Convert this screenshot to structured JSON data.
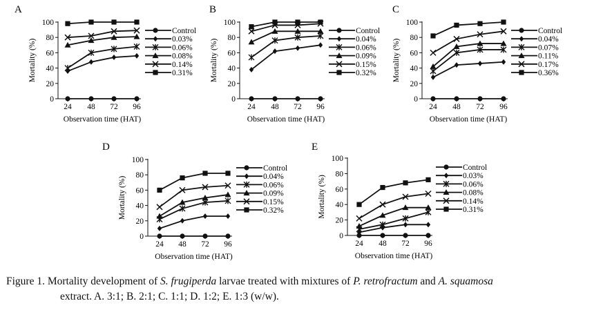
{
  "figure": {
    "caption": {
      "prefix": "Figure 1. Mortality development of ",
      "species1": "S. frugiperda",
      "mid1": " larvae treated with mixtures of ",
      "species2": "P. retrofractum",
      "mid2": " and ",
      "species3": "A. squamosa",
      "line2": "extract. A. 3:1; B. 2:1; C. 1:1; D. 1:2; E. 1:3 (w/w)."
    }
  },
  "chart_data": [
    {
      "type": "line",
      "panel": "A",
      "x": [
        24,
        48,
        72,
        96
      ],
      "xlabel": "Observation time (HAT)",
      "ylabel": "Mortality (%)",
      "ylim": [
        0,
        100
      ],
      "yticks": [
        0,
        20,
        40,
        60,
        80,
        100
      ],
      "series": [
        {
          "name": "Control",
          "marker": "circle",
          "values": [
            0,
            0,
            0,
            0
          ]
        },
        {
          "name": "0.03%",
          "marker": "diamond",
          "values": [
            36,
            48,
            54,
            56
          ]
        },
        {
          "name": "0.06%",
          "marker": "star",
          "values": [
            40,
            60,
            65,
            68
          ]
        },
        {
          "name": "0.08%",
          "marker": "triangle",
          "values": [
            70,
            76,
            80,
            81
          ]
        },
        {
          "name": "0.14%",
          "marker": "x",
          "values": [
            80,
            82,
            88,
            89
          ]
        },
        {
          "name": "0.31%",
          "marker": "square",
          "values": [
            98,
            100,
            100,
            100
          ]
        }
      ]
    },
    {
      "type": "line",
      "panel": "B",
      "x": [
        24,
        48,
        72,
        96
      ],
      "xlabel": "Observation time (HAT)",
      "ylabel": "Mortality (%)",
      "ylim": [
        0,
        100
      ],
      "yticks": [
        0,
        20,
        40,
        60,
        80,
        100
      ],
      "series": [
        {
          "name": "Control",
          "marker": "circle",
          "values": [
            0,
            0,
            0,
            0
          ]
        },
        {
          "name": "0.04%",
          "marker": "diamond",
          "values": [
            38,
            62,
            66,
            70
          ]
        },
        {
          "name": "0.06%",
          "marker": "star",
          "values": [
            54,
            76,
            80,
            82
          ]
        },
        {
          "name": "0.09%",
          "marker": "triangle",
          "values": [
            74,
            88,
            88,
            88
          ]
        },
        {
          "name": "0.15%",
          "marker": "x",
          "values": [
            88,
            96,
            96,
            98
          ]
        },
        {
          "name": "0.32%",
          "marker": "square",
          "values": [
            94,
            100,
            100,
            100
          ]
        }
      ]
    },
    {
      "type": "line",
      "panel": "C",
      "x": [
        24,
        48,
        72,
        96
      ],
      "xlabel": "Observation time (HAT)",
      "ylabel": "Mortality (%)",
      "ylim": [
        0,
        100
      ],
      "yticks": [
        0,
        20,
        40,
        60,
        80,
        100
      ],
      "series": [
        {
          "name": "Control",
          "marker": "circle",
          "values": [
            0,
            0,
            0,
            0
          ]
        },
        {
          "name": "0.04%",
          "marker": "diamond",
          "values": [
            28,
            44,
            46,
            48
          ]
        },
        {
          "name": "0.07%",
          "marker": "star",
          "values": [
            36,
            60,
            64,
            64
          ]
        },
        {
          "name": "0.11%",
          "marker": "triangle",
          "values": [
            42,
            68,
            72,
            72
          ]
        },
        {
          "name": "0.17%",
          "marker": "x",
          "values": [
            60,
            78,
            84,
            88
          ]
        },
        {
          "name": "0.36%",
          "marker": "square",
          "values": [
            82,
            96,
            98,
            100
          ]
        }
      ]
    },
    {
      "type": "line",
      "panel": "D",
      "x": [
        24,
        48,
        72,
        96
      ],
      "xlabel": "Observation time (HAT)",
      "ylabel": "Mortality (%)",
      "ylim": [
        0,
        100
      ],
      "yticks": [
        0,
        20,
        40,
        60,
        80,
        100
      ],
      "series": [
        {
          "name": "Control",
          "marker": "circle",
          "values": [
            0,
            0,
            0,
            0
          ]
        },
        {
          "name": "0.04%",
          "marker": "diamond",
          "values": [
            10,
            20,
            26,
            26
          ]
        },
        {
          "name": "0.06%",
          "marker": "star",
          "values": [
            22,
            36,
            44,
            46
          ]
        },
        {
          "name": "0.09%",
          "marker": "triangle",
          "values": [
            26,
            44,
            50,
            54
          ]
        },
        {
          "name": "0.15%",
          "marker": "x",
          "values": [
            38,
            60,
            64,
            66
          ]
        },
        {
          "name": "0.32%",
          "marker": "square",
          "values": [
            60,
            76,
            82,
            82
          ]
        }
      ]
    },
    {
      "type": "line",
      "panel": "E",
      "x": [
        24,
        48,
        72,
        96
      ],
      "xlabel": "Observation time (HAT)",
      "ylabel": "Mortality (%)",
      "ylim": [
        0,
        100
      ],
      "yticks": [
        0,
        20,
        40,
        60,
        80,
        100
      ],
      "series": [
        {
          "name": "Control",
          "marker": "circle",
          "values": [
            0,
            0,
            0,
            0
          ]
        },
        {
          "name": "0.03%",
          "marker": "diamond",
          "values": [
            4,
            10,
            14,
            14
          ]
        },
        {
          "name": "0.06%",
          "marker": "star",
          "values": [
            8,
            14,
            22,
            30
          ]
        },
        {
          "name": "0.08%",
          "marker": "triangle",
          "values": [
            12,
            26,
            36,
            36
          ]
        },
        {
          "name": "0.14%",
          "marker": "x",
          "values": [
            22,
            40,
            50,
            54
          ]
        },
        {
          "name": "0.31%",
          "marker": "square",
          "values": [
            40,
            62,
            68,
            72
          ]
        }
      ]
    }
  ]
}
